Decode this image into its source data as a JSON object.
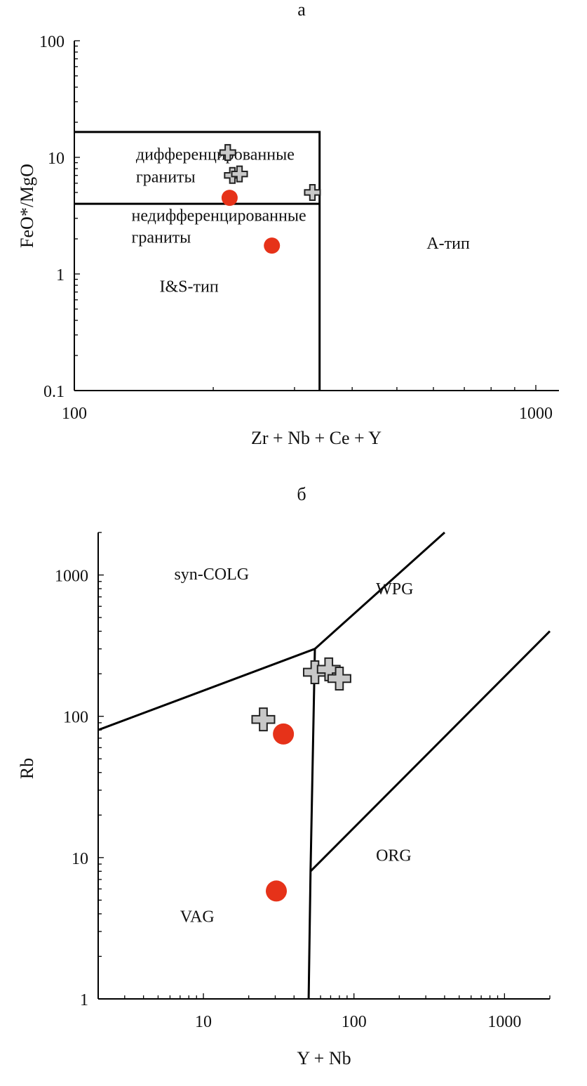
{
  "chart_data": [
    {
      "type": "scatter",
      "panel_label": "а",
      "xlabel": "Zr + Nb + Ce + Y",
      "ylabel": "FeO*/MgO",
      "x_scale": "log",
      "y_scale": "log",
      "xlim": [
        100,
        1000
      ],
      "ylim": [
        0.1,
        100
      ],
      "x_ticks": [
        "100",
        "1000"
      ],
      "y_ticks": [
        "0.1",
        "1",
        "10",
        "100"
      ],
      "region_labels": [
        {
          "text": "дифференцированные",
          "x": 136,
          "y": 9.5
        },
        {
          "text": "граниты",
          "x": 136,
          "y": 6.1
        },
        {
          "text": "недифференцированные",
          "x": 133,
          "y": 2.85
        },
        {
          "text": "граниты",
          "x": 133,
          "y": 1.85
        },
        {
          "text": "A-тип",
          "x": 580,
          "y": 1.65
        },
        {
          "text": "I&S-тип",
          "x": 153,
          "y": 0.7
        }
      ],
      "boundaries": [
        {
          "points": [
            [
              100,
              16.5
            ],
            [
              340,
              16.5
            ],
            [
              340,
              0.1
            ]
          ]
        },
        {
          "points": [
            [
              100,
              4.0
            ],
            [
              340,
              4.0
            ]
          ]
        }
      ],
      "series": [
        {
          "marker": "cross",
          "color": "#c8c8c8",
          "points": [
            [
              215,
              11
            ],
            [
              220,
              7.0
            ],
            [
              228,
              7.2
            ],
            [
              328,
              5.0
            ]
          ]
        },
        {
          "marker": "circle",
          "color": "#e63219",
          "points": [
            [
              217,
              4.5
            ],
            [
              268,
              1.75
            ]
          ]
        }
      ]
    },
    {
      "type": "scatter",
      "panel_label": "б",
      "xlabel": "Y + Nb",
      "ylabel": "Rb",
      "x_scale": "log",
      "y_scale": "log",
      "xlim": [
        2,
        2000
      ],
      "ylim": [
        1,
        2000
      ],
      "x_ticks": [
        "10",
        "100",
        "1000"
      ],
      "y_ticks": [
        "1",
        "10",
        "100",
        "1000"
      ],
      "region_labels": [
        {
          "text": "syn-COLG",
          "x": 6.4,
          "y": 930
        },
        {
          "text": "WPG",
          "x": 140,
          "y": 730
        },
        {
          "text": "ORG",
          "x": 140,
          "y": 9.5
        },
        {
          "text": "VAG",
          "x": 7.0,
          "y": 3.5
        }
      ],
      "boundaries": [
        {
          "points": [
            [
              2,
              80
            ],
            [
              55,
              300
            ]
          ]
        },
        {
          "points": [
            [
              55,
              300
            ],
            [
              400,
              2000
            ]
          ]
        },
        {
          "points": [
            [
              55,
              300
            ],
            [
              51.5,
              8
            ],
            [
              50,
              1
            ]
          ]
        },
        {
          "points": [
            [
              51.5,
              8
            ],
            [
              2000,
              400
            ]
          ]
        }
      ],
      "series": [
        {
          "marker": "cross",
          "color": "#c8c8c8",
          "points": [
            [
              25,
              95
            ],
            [
              55,
              205
            ],
            [
              68,
              215
            ],
            [
              80,
              185
            ]
          ]
        },
        {
          "marker": "circle",
          "color": "#e63219",
          "points": [
            [
              34,
              75
            ],
            [
              30.5,
              5.8
            ]
          ]
        }
      ]
    }
  ]
}
